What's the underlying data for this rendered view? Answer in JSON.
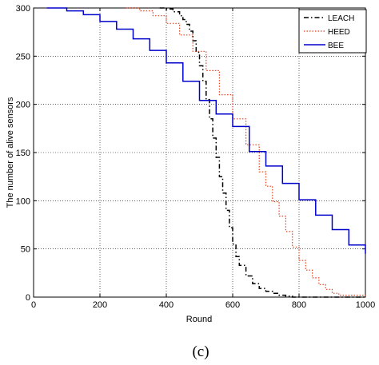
{
  "chart_data": {
    "type": "line",
    "xlabel": "Round",
    "ylabel": "The number of alive sensors",
    "xlim": [
      0,
      1000
    ],
    "ylim": [
      0,
      300
    ],
    "xticks": [
      0,
      200,
      400,
      600,
      800,
      1000
    ],
    "yticks": [
      0,
      50,
      100,
      150,
      200,
      250,
      300
    ],
    "grid": true,
    "legend_position": "top-right",
    "series": [
      {
        "name": "LEACH",
        "color": "#000000",
        "dash": "dashdot",
        "x": [
          380,
          400,
          420,
          440,
          450,
          460,
          470,
          480,
          490,
          500,
          510,
          520,
          530,
          540,
          550,
          560,
          570,
          580,
          590,
          600,
          610,
          620,
          640,
          660,
          680,
          700,
          720,
          740,
          760,
          780,
          800,
          850,
          900,
          950,
          1000
        ],
        "y": [
          300,
          299,
          296,
          292,
          288,
          283,
          276,
          266,
          254,
          240,
          224,
          205,
          185,
          165,
          145,
          125,
          108,
          90,
          72,
          55,
          42,
          33,
          22,
          14,
          9,
          6,
          4,
          2,
          1,
          0,
          0,
          0,
          0,
          0,
          0
        ]
      },
      {
        "name": "HEED",
        "color": "#e8401c",
        "dash": "dotted",
        "x": [
          280,
          320,
          360,
          400,
          440,
          480,
          520,
          560,
          600,
          640,
          680,
          700,
          720,
          740,
          760,
          780,
          800,
          820,
          840,
          860,
          880,
          900,
          920,
          1000
        ],
        "y": [
          300,
          297,
          292,
          284,
          272,
          255,
          235,
          210,
          185,
          158,
          130,
          115,
          99,
          84,
          68,
          52,
          38,
          28,
          20,
          13,
          8,
          4,
          2,
          2
        ]
      },
      {
        "name": "BEE",
        "color": "#0000cc",
        "dash": "solid",
        "x": [
          40,
          100,
          150,
          200,
          250,
          300,
          350,
          400,
          450,
          500,
          550,
          600,
          650,
          700,
          750,
          800,
          850,
          900,
          950,
          1000
        ],
        "y": [
          300,
          297,
          293,
          286,
          278,
          268,
          256,
          243,
          224,
          204,
          190,
          177,
          151,
          136,
          118,
          101,
          85,
          70,
          54,
          45
        ]
      }
    ]
  },
  "panel_label": "(c)"
}
